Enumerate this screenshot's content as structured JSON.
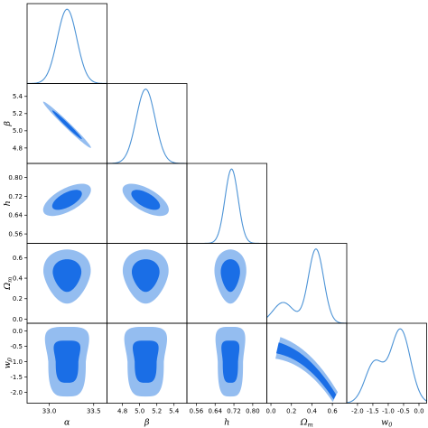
{
  "chart_data": {
    "type": "corner",
    "parameters": [
      {
        "name": "alpha",
        "label": "α",
        "ticks": [],
        "range": [
          32.75,
          33.65
        ]
      },
      {
        "name": "beta",
        "label": "β",
        "ticks": [
          "4.8",
          "5.0",
          "5.2",
          "5.4"
        ],
        "range": [
          4.62,
          5.55
        ]
      },
      {
        "name": "h",
        "label": "h",
        "ticks": [
          "0.56",
          "0.64",
          "0.72",
          "0.80"
        ],
        "range": [
          0.52,
          0.86
        ]
      },
      {
        "name": "omega_m",
        "label": "Ωm",
        "ticks": [
          "0.0",
          "0.2",
          "0.4",
          "0.6"
        ],
        "range": [
          -0.04,
          0.74
        ]
      },
      {
        "name": "w0",
        "label": "w0",
        "ticks": [
          "-2.0",
          "-1.5",
          "-1.0",
          "-0.5",
          "0.0"
        ],
        "range": [
          -2.35,
          0.25
        ]
      }
    ],
    "alpha_ticks_bottom": [
      "33.0",
      "33.5"
    ],
    "alpha_tick_values": [
      33.0,
      33.5
    ],
    "y_tick_labels": {
      "beta": [
        "5.4",
        "5.2",
        "5.0",
        "4.8"
      ],
      "h": [
        "0.80",
        "0.72",
        "0.64",
        "0.56"
      ],
      "omega_m": [
        "0.6",
        "0.4",
        "0.2",
        "0.0"
      ],
      "w0": [
        "0.0",
        "-0.5",
        "-1.0",
        "-1.5",
        "-2.0"
      ]
    },
    "marginals": [
      {
        "param": "alpha",
        "shape": "gaussian",
        "mean": 33.2,
        "sigma": 0.11
      },
      {
        "param": "beta",
        "shape": "gaussian",
        "mean": 5.07,
        "sigma": 0.11
      },
      {
        "param": "h",
        "shape": "gaussian",
        "mean": 0.71,
        "sigma": 0.028
      },
      {
        "param": "omega_m",
        "shape": "mixture",
        "components": [
          [
            0.44,
            0.075,
            1.0
          ],
          [
            0.12,
            0.1,
            0.28
          ]
        ]
      },
      {
        "param": "w0",
        "shape": "mixture",
        "components": [
          [
            -0.6,
            0.32,
            1.0
          ],
          [
            -1.45,
            0.3,
            0.55
          ]
        ]
      }
    ],
    "contours_2d": [
      {
        "x": "alpha",
        "y": "beta",
        "kind": "ellipse",
        "center": [
          33.2,
          5.07
        ],
        "sx": 0.11,
        "sy": 0.11,
        "rho": -0.985
      },
      {
        "x": "alpha",
        "y": "h",
        "kind": "ellipse",
        "center": [
          33.2,
          0.705
        ],
        "sx": 0.11,
        "sy": 0.028,
        "rho": 0.62
      },
      {
        "x": "beta",
        "y": "h",
        "kind": "ellipse",
        "center": [
          5.07,
          0.705
        ],
        "sx": 0.11,
        "sy": 0.028,
        "rho": -0.62
      },
      {
        "x": "alpha",
        "y": "omega_m",
        "kind": "blob",
        "center": [
          33.2,
          0.38
        ],
        "sx": 0.11,
        "sy": 0.1
      },
      {
        "x": "beta",
        "y": "omega_m",
        "kind": "blob",
        "center": [
          5.07,
          0.38
        ],
        "sx": 0.11,
        "sy": 0.1
      },
      {
        "x": "h",
        "y": "omega_m",
        "kind": "blob",
        "center": [
          0.705,
          0.38
        ],
        "sx": 0.028,
        "sy": 0.1
      },
      {
        "x": "alpha",
        "y": "w0",
        "kind": "trapezoid",
        "center": [
          33.2,
          -1.0
        ],
        "sx": 0.11,
        "sy": 0.45
      },
      {
        "x": "beta",
        "y": "w0",
        "kind": "trapezoid",
        "center": [
          5.07,
          -1.0
        ],
        "sx": 0.11,
        "sy": 0.45
      },
      {
        "x": "h",
        "y": "w0",
        "kind": "trapezoid",
        "center": [
          0.705,
          -1.0
        ],
        "sx": 0.028,
        "sy": 0.45
      },
      {
        "x": "omega_m",
        "y": "w0",
        "kind": "banana"
      }
    ],
    "levels": [
      "68%",
      "95%"
    ],
    "colors": {
      "inner": "#1a6ee6",
      "outer": "#94bdf0",
      "line": "#4c93d6",
      "axis": "#000000"
    },
    "grid": false,
    "legend": "none"
  }
}
